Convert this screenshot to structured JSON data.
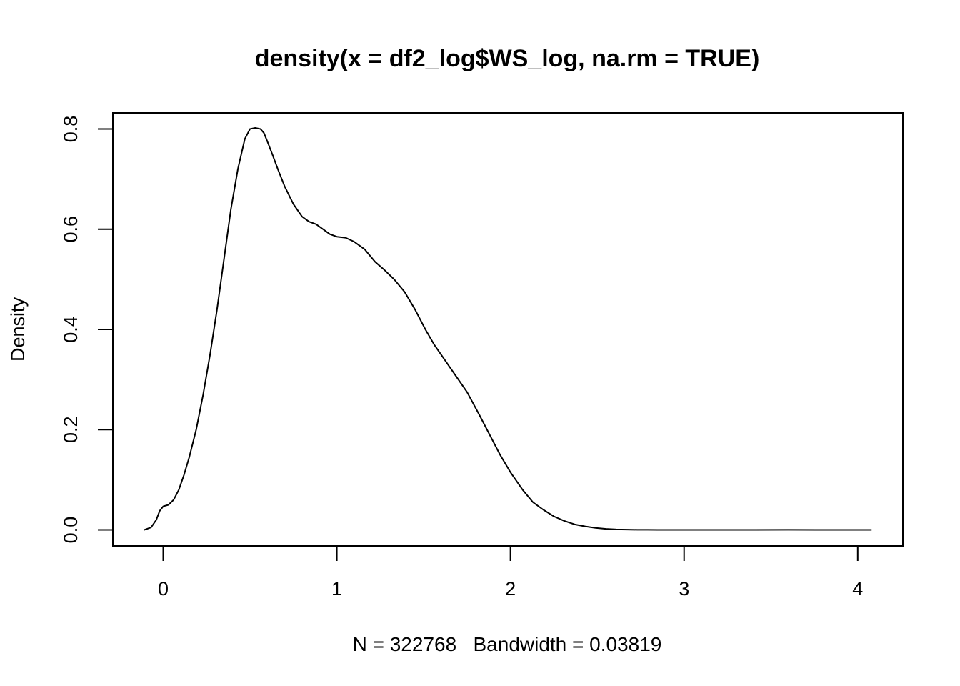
{
  "chart_data": {
    "type": "line",
    "title": "density(x = df2_log$WS_log, na.rm = TRUE)",
    "xlabel": "N = 322768   Bandwidth = 0.03819",
    "ylabel": "Density",
    "xlim": [
      -0.29,
      4.26
    ],
    "ylim": [
      -0.032,
      0.832
    ],
    "x_ticks": [
      0,
      1,
      2,
      3,
      4
    ],
    "y_ticks": [
      0.0,
      0.2,
      0.4,
      0.6,
      0.8
    ],
    "x_tick_labels": [
      "0",
      "1",
      "2",
      "3",
      "4"
    ],
    "y_tick_labels": [
      "0.0",
      "0.2",
      "0.4",
      "0.6",
      "0.8"
    ],
    "grid": false,
    "zero_line": true,
    "series": [
      {
        "x": [
          -0.11,
          -0.07,
          -0.04,
          -0.02,
          0.0,
          0.03,
          0.06,
          0.09,
          0.12,
          0.15,
          0.19,
          0.23,
          0.27,
          0.31,
          0.35,
          0.39,
          0.43,
          0.47,
          0.5,
          0.53,
          0.56,
          0.58,
          0.6,
          0.63,
          0.66,
          0.7,
          0.75,
          0.8,
          0.84,
          0.88,
          0.92,
          0.96,
          1.0,
          1.05,
          1.1,
          1.16,
          1.22,
          1.27,
          1.33,
          1.39,
          1.45,
          1.51,
          1.56,
          1.62,
          1.68,
          1.75,
          1.82,
          1.88,
          1.94,
          2.0,
          2.07,
          2.13,
          2.19,
          2.25,
          2.31,
          2.37,
          2.43,
          2.49,
          2.55,
          2.61,
          2.67,
          2.73,
          2.79,
          2.85,
          2.91,
          2.97,
          3.05,
          3.2,
          3.4,
          3.6,
          3.8,
          4.0,
          4.08
        ],
        "y": [
          0.0,
          0.005,
          0.02,
          0.038,
          0.047,
          0.05,
          0.06,
          0.08,
          0.11,
          0.145,
          0.2,
          0.27,
          0.35,
          0.44,
          0.54,
          0.64,
          0.72,
          0.78,
          0.8,
          0.802,
          0.8,
          0.792,
          0.775,
          0.748,
          0.72,
          0.685,
          0.65,
          0.625,
          0.615,
          0.61,
          0.6,
          0.59,
          0.585,
          0.583,
          0.575,
          0.56,
          0.535,
          0.52,
          0.5,
          0.475,
          0.44,
          0.4,
          0.37,
          0.34,
          0.31,
          0.275,
          0.23,
          0.19,
          0.15,
          0.115,
          0.08,
          0.055,
          0.04,
          0.027,
          0.018,
          0.011,
          0.007,
          0.004,
          0.002,
          0.001,
          0.0006,
          0.0003,
          0.0002,
          0.0001,
          0.0001,
          0.0001,
          0.0001,
          0.0001,
          0.0001,
          0.0002,
          0.0001,
          0.0,
          0.0
        ]
      }
    ]
  }
}
